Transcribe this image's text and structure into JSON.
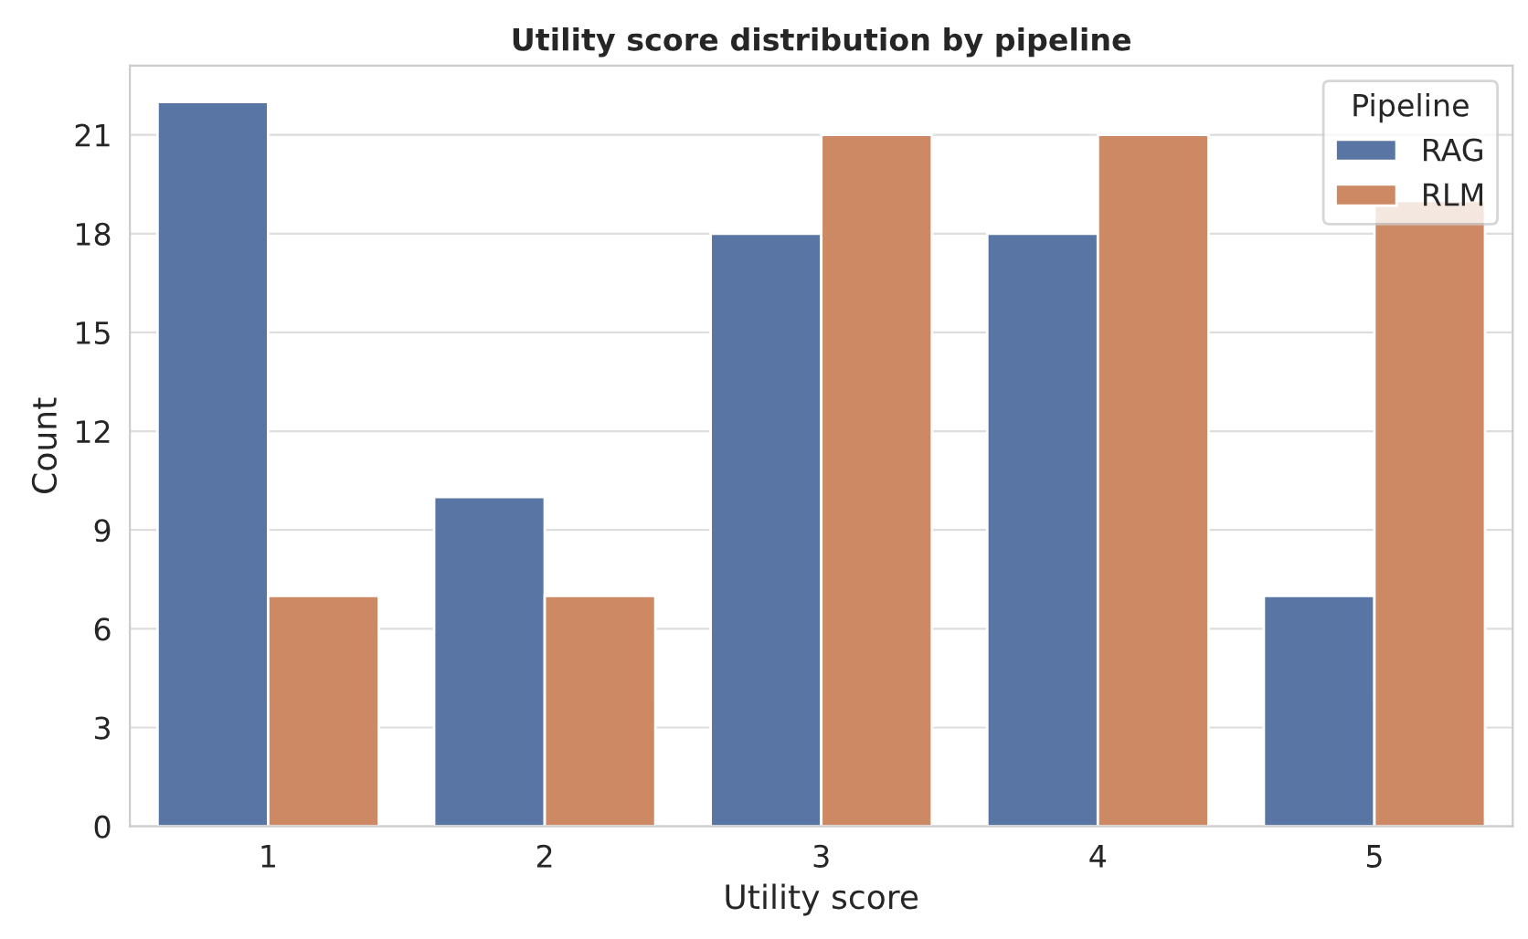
{
  "chart_data": {
    "type": "bar",
    "title": "Utility score distribution by pipeline",
    "xlabel": "Utility score",
    "ylabel": "Count",
    "legend_title": "Pipeline",
    "categories": [
      "1",
      "2",
      "3",
      "4",
      "5"
    ],
    "series": [
      {
        "name": "RAG",
        "color": "#5875a4",
        "values": [
          22,
          10,
          18,
          18,
          7
        ]
      },
      {
        "name": "RLM",
        "color": "#cc8963",
        "values": [
          7,
          7,
          21,
          21,
          19
        ]
      }
    ],
    "ylim": [
      0,
      23.1
    ],
    "yticks": [
      0,
      3,
      6,
      9,
      12,
      15,
      18,
      21
    ],
    "grid": "y",
    "legend": "top right"
  }
}
